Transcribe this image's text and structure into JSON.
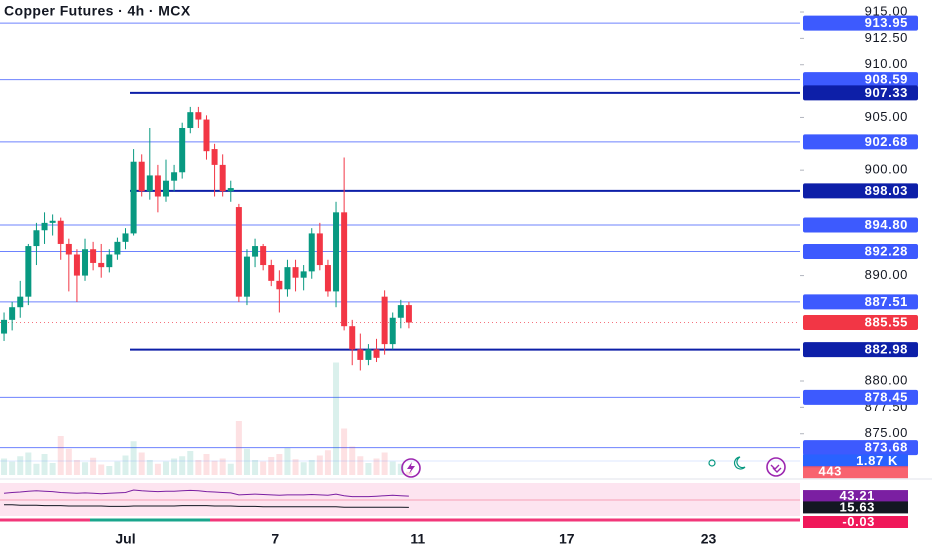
{
  "chart_data": {
    "type": "candlestick",
    "title": "Copper Futures · 4h · MCX",
    "x": [
      0,
      1,
      2,
      3,
      4,
      5,
      6,
      7,
      8,
      9,
      10,
      11,
      12,
      13,
      14,
      15,
      16,
      17,
      18,
      19,
      20,
      21,
      22,
      23,
      24,
      25,
      26,
      27,
      28,
      29,
      30,
      31,
      32,
      33,
      34,
      35,
      36,
      37,
      38,
      39,
      40,
      41,
      42,
      43,
      44,
      45,
      46,
      47,
      48,
      49,
      50
    ],
    "open": [
      884.5,
      885.8,
      887.0,
      888.0,
      892.8,
      894.3,
      895.0,
      895.2,
      893.0,
      892.0,
      890.0,
      892.5,
      891.2,
      890.8,
      892.0,
      893.2,
      894.0,
      900.8,
      898.0,
      899.5,
      897.5,
      899.0,
      899.8,
      904.0,
      905.5,
      904.8,
      902.0,
      900.5,
      898.0,
      896.5,
      888.0,
      891.8,
      892.8,
      891.0,
      889.5,
      888.7,
      890.8,
      889.8,
      890.4,
      894.0,
      891.0,
      888.5,
      896.0,
      885.2,
      883.0,
      882.0,
      883.0,
      888.0,
      883.5,
      886.0,
      887.2
    ],
    "high": [
      886.5,
      887.5,
      889.5,
      893.0,
      895.0,
      896.0,
      895.8,
      895.5,
      893.5,
      892.5,
      893.5,
      893.2,
      893.0,
      892.5,
      893.6,
      894.5,
      902.0,
      901.5,
      904.0,
      900.5,
      901.0,
      900.5,
      904.5,
      906.0,
      906.0,
      905.2,
      902.5,
      901.5,
      899.0,
      896.8,
      892.5,
      893.5,
      893.0,
      891.5,
      890.5,
      891.5,
      891.5,
      891.0,
      894.5,
      895.0,
      891.5,
      897.0,
      901.2,
      885.8,
      884.5,
      883.5,
      884.0,
      888.6,
      886.5,
      887.7,
      887.5
    ],
    "low": [
      883.8,
      884.8,
      886.0,
      887.2,
      891.0,
      893.0,
      893.8,
      891.5,
      888.5,
      887.5,
      889.5,
      890.5,
      889.8,
      890.3,
      891.5,
      892.5,
      893.8,
      897.5,
      897.2,
      896.0,
      897.0,
      898.0,
      899.2,
      903.5,
      904.0,
      901.0,
      897.5,
      897.5,
      897.0,
      887.5,
      887.2,
      890.8,
      890.5,
      889.0,
      886.5,
      888.0,
      888.5,
      888.6,
      889.7,
      890.5,
      888.0,
      887.0,
      884.8,
      881.5,
      881.0,
      881.5,
      881.8,
      882.5,
      883.0,
      885.0,
      885.0
    ],
    "close": [
      885.8,
      887.0,
      888.0,
      892.8,
      894.3,
      895.0,
      895.2,
      893.0,
      892.0,
      890.0,
      892.5,
      891.2,
      890.8,
      892.0,
      893.2,
      894.0,
      900.8,
      898.0,
      899.5,
      897.5,
      899.0,
      899.8,
      904.0,
      905.5,
      904.8,
      901.8,
      900.5,
      898.0,
      898.3,
      888.0,
      891.8,
      892.8,
      891.0,
      889.5,
      888.7,
      890.8,
      889.8,
      890.4,
      894.0,
      891.0,
      888.5,
      896.0,
      885.2,
      883.0,
      882.0,
      883.0,
      882.2,
      883.5,
      886.0,
      887.2,
      885.55
    ],
    "up_color": "#089981",
    "down_color": "#f23645",
    "xlim": [
      -0.5,
      98.3
    ],
    "xticks": [
      {
        "value": 15,
        "label": "Jul"
      },
      {
        "value": 33.5,
        "label": "7"
      },
      {
        "value": 51.1,
        "label": "11"
      },
      {
        "value": 69.5,
        "label": "17"
      },
      {
        "value": 87,
        "label": "23"
      }
    ],
    "ylim": [
      870.8,
      916.14
    ],
    "yticks": [
      {
        "value": 915,
        "label": "915.00"
      },
      {
        "value": 912.5,
        "label": "912.50"
      },
      {
        "value": 910,
        "label": "910.00"
      },
      {
        "value": 905,
        "label": "905.00"
      },
      {
        "value": 900,
        "label": "900.00"
      },
      {
        "value": 890,
        "label": "890.00"
      },
      {
        "value": 880,
        "label": "880.00"
      },
      {
        "value": 877.5,
        "label": "877.50"
      },
      {
        "value": 875,
        "label": "875.00"
      }
    ],
    "levels": [
      {
        "value": 913.95,
        "label": "913.95",
        "color": "#3d5afe",
        "line_width": 1
      },
      {
        "value": 908.59,
        "label": "908.59",
        "color": "#3d5afe",
        "line_width": 1
      },
      {
        "value": 907.33,
        "label": "907.33",
        "color": "#0d1fa8",
        "line_width": 2
      },
      {
        "value": 902.68,
        "label": "902.68",
        "color": "#3d5afe",
        "line_width": 1
      },
      {
        "value": 898.03,
        "label": "898.03",
        "color": "#0d1fa8",
        "line_width": 2
      },
      {
        "value": 894.8,
        "label": "894.80",
        "color": "#3d5afe",
        "line_width": 1
      },
      {
        "value": 892.28,
        "label": "892.28",
        "color": "#3d5afe",
        "line_width": 1
      },
      {
        "value": 887.51,
        "label": "887.51",
        "color": "#3d5afe",
        "line_width": 1
      },
      {
        "value": 882.98,
        "label": "882.98",
        "color": "#0d1fa8",
        "line_width": 2
      },
      {
        "value": 878.45,
        "label": "878.45",
        "color": "#3d5afe",
        "line_width": 1
      },
      {
        "value": 873.68,
        "label": "873.68",
        "color": "#3d5afe",
        "line_width": 1
      }
    ],
    "last_price": 885.55,
    "last_price_color": "#f23645",
    "volume": [
      2200,
      1800,
      2500,
      3000,
      1500,
      2800,
      1600,
      5200,
      3500,
      2000,
      1700,
      2300,
      1400,
      1200,
      1800,
      2600,
      4500,
      3000,
      2000,
      1500,
      1800,
      2200,
      2500,
      3200,
      2000,
      2800,
      1900,
      2200,
      1500,
      7200,
      3500,
      2000,
      1800,
      2400,
      2800,
      3600,
      2100,
      1700,
      2000,
      2600,
      3300,
      15000,
      6200,
      3800,
      2500,
      1600,
      2200,
      3000,
      1800,
      1500,
      443
    ],
    "volume_ylim": [
      0,
      16000
    ],
    "volume_ma": {
      "value": 1870,
      "label": "1.87 K",
      "color": "#2962ff"
    },
    "last_volume_color": "#f7525f",
    "indicator": {
      "ylim": [
        -15,
        75
      ],
      "series": [
        {
          "color": "#7b1fa2",
          "values": [
            50,
            52,
            53,
            55,
            56,
            55,
            54,
            52,
            51,
            50,
            51,
            50,
            49,
            50,
            51,
            52,
            58,
            56,
            55,
            54,
            55,
            55,
            56,
            57,
            56,
            54,
            53,
            52,
            51,
            46,
            47,
            48,
            47,
            46,
            45,
            46,
            46,
            46,
            47,
            46,
            45,
            48,
            44,
            42,
            42,
            42,
            43,
            44,
            45,
            44,
            43.21
          ]
        },
        {
          "color": "#131722",
          "values": [
            22,
            22,
            21,
            21,
            21,
            20,
            20,
            20,
            19,
            19,
            19,
            19,
            19,
            18,
            18,
            18,
            19,
            19,
            19,
            19,
            19,
            19,
            20,
            20,
            20,
            20,
            19,
            19,
            19,
            18,
            18,
            18,
            17,
            17,
            17,
            17,
            17,
            17,
            17,
            17,
            17,
            17,
            16,
            16,
            16,
            16,
            16,
            16,
            16,
            16,
            15.63
          ]
        }
      ],
      "histogram_value": -0.03,
      "histogram_color": "#f0185a"
    }
  }
}
